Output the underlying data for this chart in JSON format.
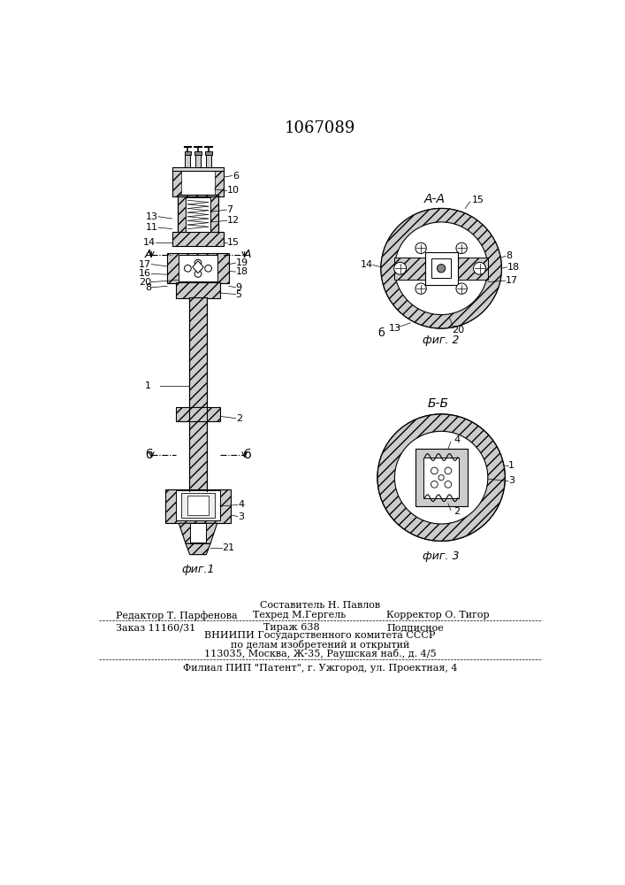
{
  "patent_number": "1067089",
  "background_color": "#ffffff",
  "line_color": "#000000",
  "footer": {
    "composer": "Составитель Н. Павлов",
    "editor": "Редактор Т. Парфенова",
    "techred": "Техред М.Гергель",
    "corrector": "Корректор О. Тигор",
    "order": "Заказ 11160/31",
    "tirazh": "Тираж 638",
    "podpisnoe": "Подписное",
    "vnipi_line1": "ВНИИПИ Государственного комитета СССР",
    "vnipi_line2": "по делам изобретений и открытий",
    "vnipi_line3": "113035, Москва, Ж-35, Раушская наб., д. 4/5",
    "filial": "Филиал ПИП \"Патент\", г. Ужгород, ул. Проектная, 4"
  },
  "fig1_caption": "фиг.1",
  "fig2_caption": "фиг. 2",
  "fig3_caption": "фиг. 3",
  "section_aa": "А-А",
  "section_bb": "Б-Б"
}
